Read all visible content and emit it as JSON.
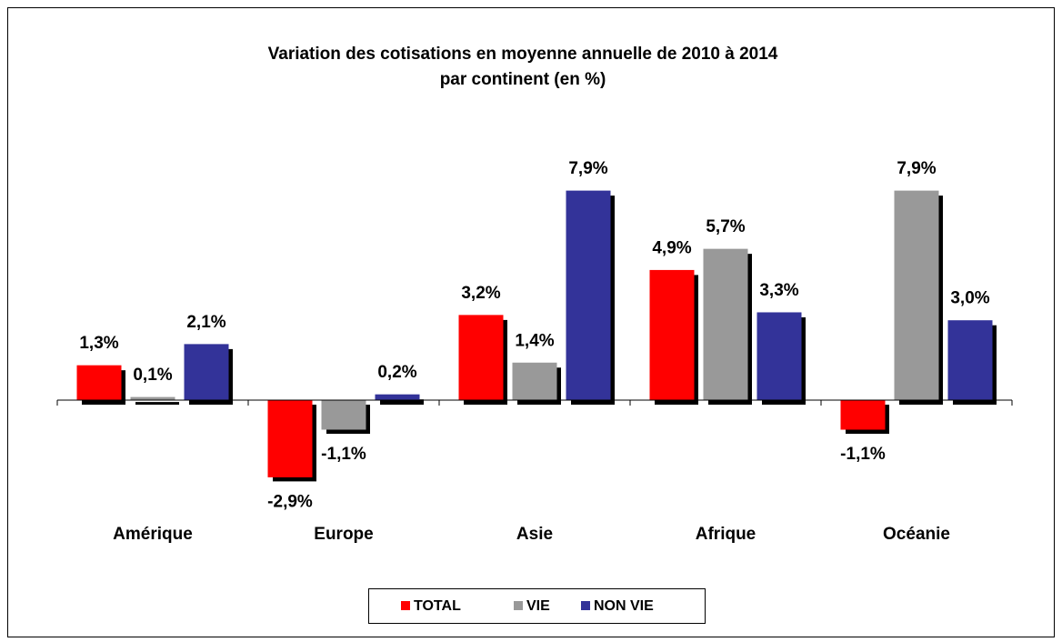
{
  "chart_data": {
    "type": "bar",
    "title": [
      "Variation des cotisations en moyenne annuelle de 2010 à 2014",
      "par continent (en %)"
    ],
    "categories": [
      "Amérique",
      "Europe",
      "Asie",
      "Afrique",
      "Océanie"
    ],
    "series": [
      {
        "name": "TOTAL",
        "color": "#ff0000",
        "values": [
          1.3,
          -2.9,
          3.2,
          4.9,
          -1.1
        ],
        "value_labels": [
          "1,3%",
          "-2,9%",
          "3,2%",
          "4,9%",
          "-1,1%"
        ]
      },
      {
        "name": "VIE",
        "color": "#999999",
        "values": [
          0.1,
          -1.1,
          1.4,
          5.7,
          7.9
        ],
        "value_labels": [
          "0,1%",
          "-1,1%",
          "1,4%",
          "5,7%",
          "7,9%"
        ]
      },
      {
        "name": "NON VIE",
        "color": "#333399",
        "values": [
          2.1,
          0.2,
          7.9,
          3.3,
          3.0
        ],
        "value_labels": [
          "2,1%",
          "0,2%",
          "7,9%",
          "3,3%",
          "3,0%"
        ]
      }
    ],
    "legend": "bottom"
  }
}
